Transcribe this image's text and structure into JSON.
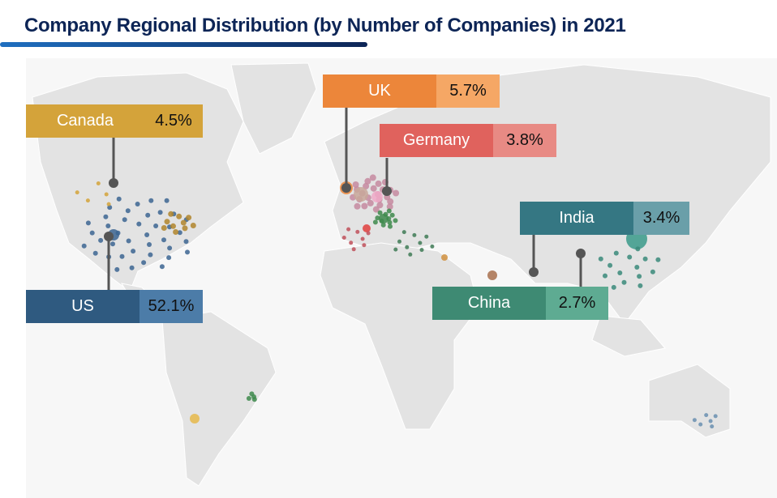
{
  "title": "Company Regional Distribution (by Number of Companies) in 2021",
  "labels": [
    {
      "id": "canada",
      "name": "Canada",
      "pct": "4.5%",
      "color": "#D4A33A",
      "pct_color": "#D4A33A"
    },
    {
      "id": "us",
      "name": "US",
      "pct": "52.1%",
      "color": "#2F5A80",
      "pct_color": "#4C7CA8"
    },
    {
      "id": "uk",
      "name": "UK",
      "pct": "5.7%",
      "color": "#EC863A",
      "pct_color": "#F5A765"
    },
    {
      "id": "germany",
      "name": "Germany",
      "pct": "3.8%",
      "color": "#E0625D",
      "pct_color": "#E88A84"
    },
    {
      "id": "india",
      "name": "India",
      "pct": "3.4%",
      "color": "#357783",
      "pct_color": "#6A9FA9"
    },
    {
      "id": "china",
      "name": "China",
      "pct": "2.7%",
      "color": "#3E8A73",
      "pct_color": "#5EAB92"
    }
  ],
  "map_colors": {
    "land": "#e3e3e3",
    "border": "#ffffff",
    "leader": "#555555"
  }
}
